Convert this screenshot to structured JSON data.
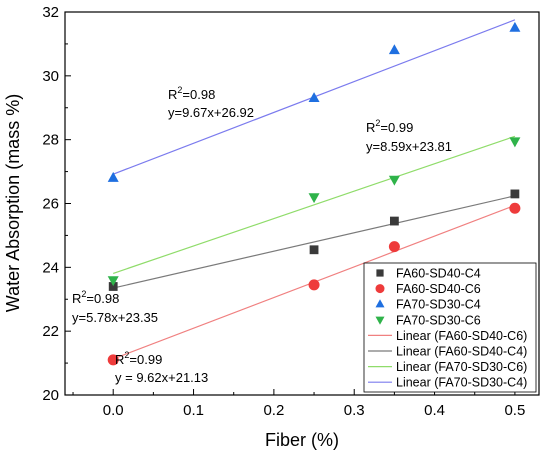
{
  "chart_data": {
    "type": "scatter",
    "xlabel": "Fiber (%)",
    "ylabel": "Water Absorption (mass %)",
    "xlim": [
      -0.06,
      0.53
    ],
    "ylim": [
      20,
      32
    ],
    "xticks": [
      0.0,
      0.1,
      0.2,
      0.3,
      0.4,
      0.5
    ],
    "xtick_labels": [
      "0.0",
      "0.1",
      "0.2",
      "0.3",
      "0.4",
      "0.5"
    ],
    "yticks": [
      20,
      22,
      24,
      26,
      28,
      30,
      32
    ],
    "ytick_labels": [
      "20",
      "22",
      "24",
      "26",
      "28",
      "30",
      "32"
    ],
    "grid": false,
    "legend_position": "bottom-right",
    "series": [
      {
        "name": "FA60-SD40-C4",
        "marker": "square",
        "color": "#3a3a3a",
        "x": [
          0.0,
          0.25,
          0.35,
          0.5
        ],
        "y": [
          23.4,
          24.55,
          25.45,
          26.3
        ]
      },
      {
        "name": "FA60-SD40-C6",
        "marker": "circle",
        "color": "#ee3b3b",
        "x": [
          0.0,
          0.25,
          0.35,
          0.5
        ],
        "y": [
          21.1,
          23.45,
          24.65,
          25.85
        ]
      },
      {
        "name": "FA70-SD30-C4",
        "marker": "triangle-up",
        "color": "#1f6fe0",
        "x": [
          0.0,
          0.25,
          0.35,
          0.5
        ],
        "y": [
          26.8,
          29.3,
          30.8,
          31.5
        ]
      },
      {
        "name": "FA70-SD30-C6",
        "marker": "triangle-down",
        "color": "#2fb34a",
        "x": [
          0.0,
          0.25,
          0.35,
          0.5
        ],
        "y": [
          23.6,
          26.2,
          26.75,
          27.95
        ]
      }
    ],
    "fits": [
      {
        "name": "Linear (FA60-SD40-C6)",
        "color": "#f08080",
        "slope": 9.62,
        "intercept": 21.13
      },
      {
        "name": "Linear (FA60-SD40-C4)",
        "color": "#7a7a7a",
        "slope": 5.78,
        "intercept": 23.35
      },
      {
        "name": "Linear (FA70-SD30-C6)",
        "color": "#8fdc6a",
        "slope": 8.59,
        "intercept": 23.81
      },
      {
        "name": "Linear (FA70-SD30-C4)",
        "color": "#7b7bee",
        "slope": 9.67,
        "intercept": 26.92
      }
    ],
    "annotations": [
      {
        "r2_prefix": "R",
        "r2_sup": "2",
        "r2_value": "=0.98",
        "equation": "y=9.67x+26.92"
      },
      {
        "r2_prefix": "R",
        "r2_sup": "2",
        "r2_value": "=0.99",
        "equation": "y=8.59x+23.81"
      },
      {
        "r2_prefix": "R",
        "r2_sup": "2",
        "r2_value": "=0.98",
        "equation": "y=5.78x+23.35"
      },
      {
        "r2_prefix": "R",
        "r2_sup": "2",
        "r2_value": "=0.99",
        "equation": "y = 9.62x+21.13"
      }
    ]
  }
}
